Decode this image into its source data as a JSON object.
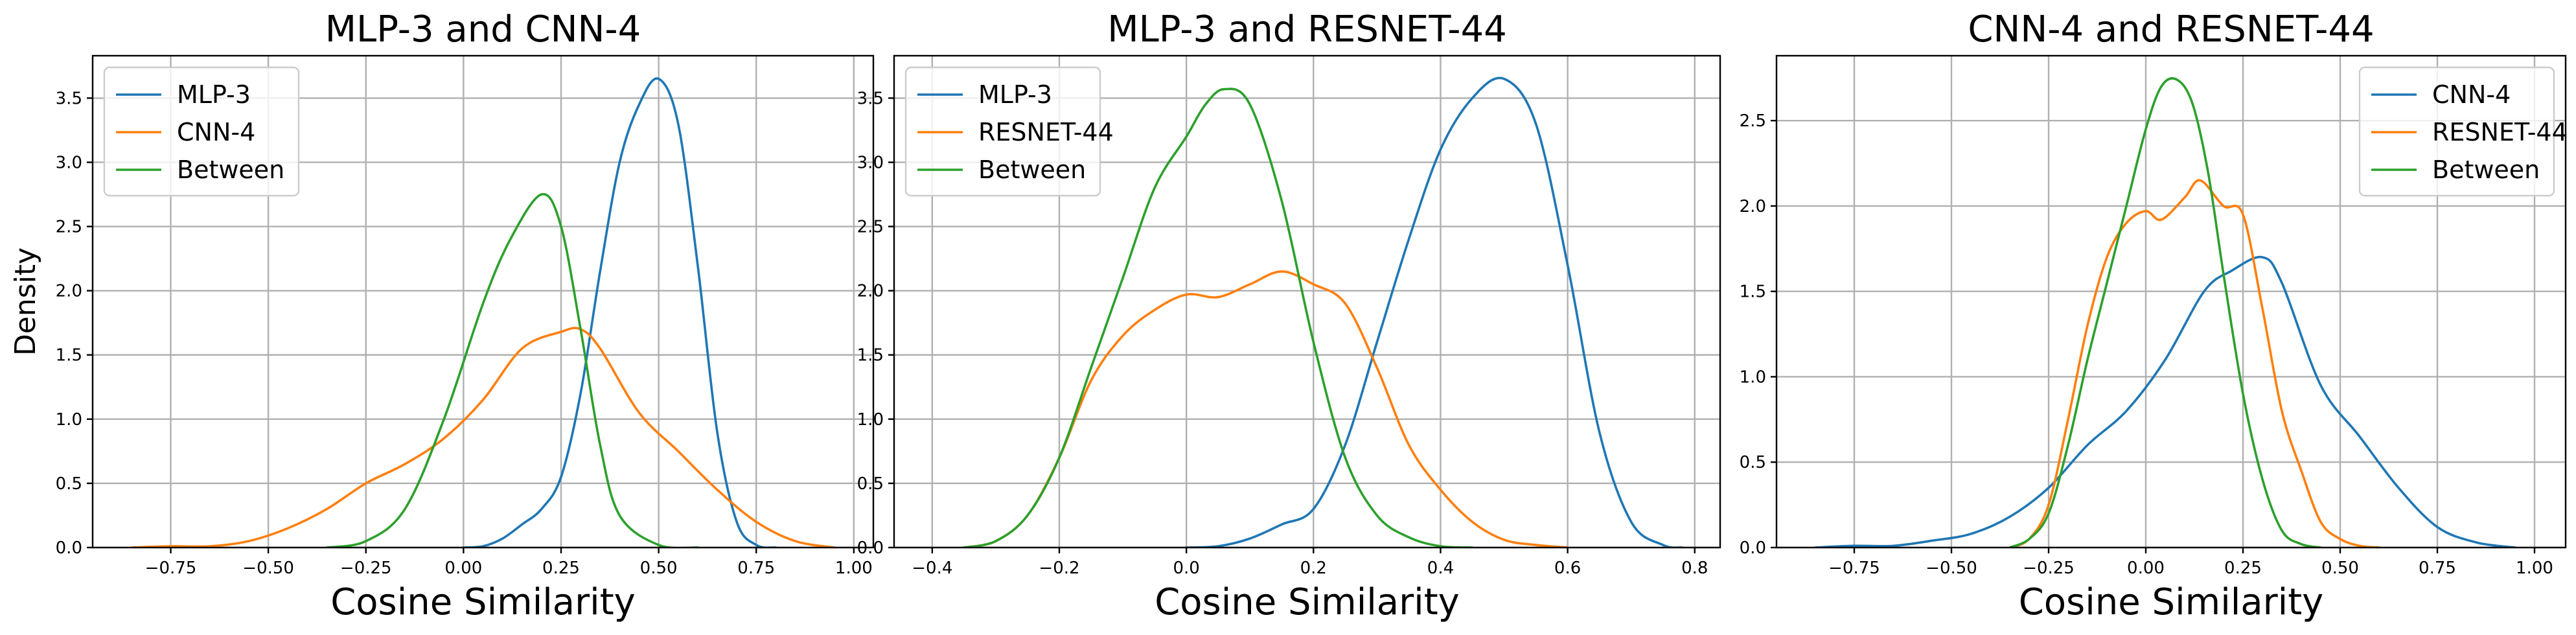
{
  "chart_data": [
    {
      "type": "line",
      "title": "MLP-3 and CNN-4",
      "xlabel": "Cosine Similarity",
      "ylabel": "Density",
      "xlim": [
        -0.95,
        1.05
      ],
      "ylim": [
        0,
        3.83
      ],
      "xticks": [
        -0.75,
        -0.5,
        -0.25,
        0.0,
        0.25,
        0.5,
        0.75,
        1.0
      ],
      "xtick_labels": [
        "−0.75",
        "−0.50",
        "−0.25",
        "0.00",
        "0.25",
        "0.50",
        "0.75",
        "1.00"
      ],
      "yticks": [
        0,
        0.5,
        1.0,
        1.5,
        2.0,
        2.5,
        3.0,
        3.5
      ],
      "ytick_labels": [
        "0.0",
        "0.5",
        "1.0",
        "1.5",
        "2.0",
        "2.5",
        "3.0",
        "3.5"
      ],
      "grid": true,
      "legend_position": "upper-left",
      "series": [
        {
          "name": "MLP-3",
          "color": "#1f77b4",
          "points": [
            [
              0.0,
              0.0
            ],
            [
              0.05,
              0.01
            ],
            [
              0.1,
              0.07
            ],
            [
              0.15,
              0.18
            ],
            [
              0.2,
              0.3
            ],
            [
              0.25,
              0.55
            ],
            [
              0.3,
              1.2
            ],
            [
              0.35,
              2.15
            ],
            [
              0.4,
              3.0
            ],
            [
              0.45,
              3.45
            ],
            [
              0.5,
              3.65
            ],
            [
              0.55,
              3.3
            ],
            [
              0.6,
              2.2
            ],
            [
              0.65,
              0.9
            ],
            [
              0.7,
              0.2
            ],
            [
              0.75,
              0.02
            ],
            [
              0.8,
              0.0
            ]
          ]
        },
        {
          "name": "CNN-4",
          "color": "#ff7f0e",
          "points": [
            [
              -0.85,
              0.0
            ],
            [
              -0.75,
              0.01
            ],
            [
              -0.65,
              0.01
            ],
            [
              -0.55,
              0.05
            ],
            [
              -0.45,
              0.15
            ],
            [
              -0.35,
              0.3
            ],
            [
              -0.25,
              0.5
            ],
            [
              -0.15,
              0.65
            ],
            [
              -0.05,
              0.85
            ],
            [
              0.05,
              1.15
            ],
            [
              0.15,
              1.55
            ],
            [
              0.25,
              1.68
            ],
            [
              0.3,
              1.7
            ],
            [
              0.35,
              1.55
            ],
            [
              0.45,
              1.05
            ],
            [
              0.55,
              0.75
            ],
            [
              0.65,
              0.45
            ],
            [
              0.75,
              0.2
            ],
            [
              0.85,
              0.05
            ],
            [
              0.95,
              0.0
            ]
          ]
        },
        {
          "name": "Between",
          "color": "#2ca02c",
          "points": [
            [
              -0.35,
              0.0
            ],
            [
              -0.25,
              0.05
            ],
            [
              -0.15,
              0.3
            ],
            [
              -0.05,
              1.0
            ],
            [
              0.05,
              1.9
            ],
            [
              0.12,
              2.4
            ],
            [
              0.2,
              2.75
            ],
            [
              0.25,
              2.5
            ],
            [
              0.3,
              1.7
            ],
            [
              0.35,
              0.8
            ],
            [
              0.4,
              0.25
            ],
            [
              0.5,
              0.02
            ],
            [
              0.6,
              0.0
            ]
          ]
        }
      ]
    },
    {
      "type": "line",
      "title": "MLP-3 and RESNET-44",
      "xlabel": "Cosine Similarity",
      "ylabel": "",
      "xlim": [
        -0.46,
        0.84
      ],
      "ylim": [
        0,
        3.83
      ],
      "xticks": [
        -0.4,
        -0.2,
        0.0,
        0.2,
        0.4,
        0.6,
        0.8
      ],
      "xtick_labels": [
        "−0.4",
        "−0.2",
        "0.0",
        "0.2",
        "0.4",
        "0.6",
        "0.8"
      ],
      "yticks": [
        0,
        0.5,
        1.0,
        1.5,
        2.0,
        2.5,
        3.0,
        3.5
      ],
      "ytick_labels": [
        "0.0",
        "0.5",
        "1.0",
        "1.5",
        "2.0",
        "2.5",
        "3.0",
        "3.5"
      ],
      "grid": true,
      "legend_position": "upper-left",
      "series": [
        {
          "name": "MLP-3",
          "color": "#1f77b4",
          "points": [
            [
              0.0,
              0.0
            ],
            [
              0.05,
              0.01
            ],
            [
              0.1,
              0.07
            ],
            [
              0.15,
              0.18
            ],
            [
              0.2,
              0.3
            ],
            [
              0.25,
              0.8
            ],
            [
              0.3,
              1.6
            ],
            [
              0.35,
              2.4
            ],
            [
              0.4,
              3.1
            ],
            [
              0.45,
              3.5
            ],
            [
              0.5,
              3.65
            ],
            [
              0.55,
              3.3
            ],
            [
              0.6,
              2.2
            ],
            [
              0.65,
              0.9
            ],
            [
              0.7,
              0.2
            ],
            [
              0.75,
              0.02
            ],
            [
              0.78,
              0.0
            ]
          ]
        },
        {
          "name": "RESNET-44",
          "color": "#ff7f0e",
          "points": [
            [
              -0.35,
              0.0
            ],
            [
              -0.3,
              0.05
            ],
            [
              -0.25,
              0.25
            ],
            [
              -0.2,
              0.7
            ],
            [
              -0.15,
              1.3
            ],
            [
              -0.1,
              1.65
            ],
            [
              -0.05,
              1.85
            ],
            [
              0.0,
              1.97
            ],
            [
              0.05,
              1.95
            ],
            [
              0.1,
              2.05
            ],
            [
              0.15,
              2.15
            ],
            [
              0.2,
              2.05
            ],
            [
              0.25,
              1.9
            ],
            [
              0.3,
              1.4
            ],
            [
              0.35,
              0.8
            ],
            [
              0.4,
              0.45
            ],
            [
              0.45,
              0.2
            ],
            [
              0.5,
              0.06
            ],
            [
              0.55,
              0.02
            ],
            [
              0.6,
              0.0
            ]
          ]
        },
        {
          "name": "Between",
          "color": "#2ca02c",
          "points": [
            [
              -0.35,
              0.0
            ],
            [
              -0.3,
              0.05
            ],
            [
              -0.25,
              0.25
            ],
            [
              -0.2,
              0.7
            ],
            [
              -0.15,
              1.4
            ],
            [
              -0.1,
              2.1
            ],
            [
              -0.05,
              2.8
            ],
            [
              0.0,
              3.2
            ],
            [
              0.03,
              3.45
            ],
            [
              0.06,
              3.57
            ],
            [
              0.1,
              3.45
            ],
            [
              0.15,
              2.7
            ],
            [
              0.2,
              1.6
            ],
            [
              0.25,
              0.7
            ],
            [
              0.3,
              0.25
            ],
            [
              0.35,
              0.08
            ],
            [
              0.4,
              0.01
            ],
            [
              0.45,
              0.0
            ]
          ]
        }
      ]
    },
    {
      "type": "line",
      "title": "CNN-4 and RESNET-44",
      "xlabel": "Cosine Similarity",
      "ylabel": "",
      "xlim": [
        -0.95,
        1.08
      ],
      "ylim": [
        0,
        2.88
      ],
      "xticks": [
        -0.75,
        -0.5,
        -0.25,
        0.0,
        0.25,
        0.5,
        0.75,
        1.0
      ],
      "xtick_labels": [
        "−0.75",
        "−0.50",
        "−0.25",
        "0.00",
        "0.25",
        "0.50",
        "0.75",
        "1.00"
      ],
      "yticks": [
        0,
        0.5,
        1.0,
        1.5,
        2.0,
        2.5
      ],
      "ytick_labels": [
        "0.0",
        "0.5",
        "1.0",
        "1.5",
        "2.0",
        "2.5"
      ],
      "grid": true,
      "legend_position": "upper-right",
      "series": [
        {
          "name": "CNN-4",
          "color": "#1f77b4",
          "points": [
            [
              -0.85,
              0.0
            ],
            [
              -0.75,
              0.01
            ],
            [
              -0.65,
              0.01
            ],
            [
              -0.55,
              0.04
            ],
            [
              -0.45,
              0.08
            ],
            [
              -0.35,
              0.18
            ],
            [
              -0.25,
              0.35
            ],
            [
              -0.15,
              0.6
            ],
            [
              -0.05,
              0.8
            ],
            [
              0.05,
              1.1
            ],
            [
              0.15,
              1.5
            ],
            [
              0.22,
              1.62
            ],
            [
              0.3,
              1.7
            ],
            [
              0.35,
              1.55
            ],
            [
              0.45,
              0.95
            ],
            [
              0.55,
              0.65
            ],
            [
              0.65,
              0.35
            ],
            [
              0.75,
              0.12
            ],
            [
              0.85,
              0.03
            ],
            [
              0.95,
              0.0
            ]
          ]
        },
        {
          "name": "RESNET-44",
          "color": "#ff7f0e",
          "points": [
            [
              -0.35,
              0.0
            ],
            [
              -0.3,
              0.05
            ],
            [
              -0.25,
              0.25
            ],
            [
              -0.2,
              0.75
            ],
            [
              -0.15,
              1.3
            ],
            [
              -0.1,
              1.7
            ],
            [
              -0.05,
              1.9
            ],
            [
              0.0,
              1.97
            ],
            [
              0.04,
              1.92
            ],
            [
              0.1,
              2.05
            ],
            [
              0.14,
              2.15
            ],
            [
              0.2,
              2.0
            ],
            [
              0.25,
              1.95
            ],
            [
              0.3,
              1.4
            ],
            [
              0.35,
              0.8
            ],
            [
              0.4,
              0.45
            ],
            [
              0.45,
              0.15
            ],
            [
              0.5,
              0.05
            ],
            [
              0.55,
              0.01
            ],
            [
              0.6,
              0.0
            ]
          ]
        },
        {
          "name": "Between",
          "color": "#2ca02c",
          "points": [
            [
              -0.35,
              0.0
            ],
            [
              -0.3,
              0.05
            ],
            [
              -0.25,
              0.2
            ],
            [
              -0.2,
              0.6
            ],
            [
              -0.15,
              1.1
            ],
            [
              -0.1,
              1.55
            ],
            [
              -0.05,
              2.0
            ],
            [
              0.0,
              2.45
            ],
            [
              0.04,
              2.7
            ],
            [
              0.08,
              2.74
            ],
            [
              0.12,
              2.6
            ],
            [
              0.16,
              2.2
            ],
            [
              0.2,
              1.6
            ],
            [
              0.25,
              0.9
            ],
            [
              0.3,
              0.4
            ],
            [
              0.35,
              0.1
            ],
            [
              0.4,
              0.02
            ],
            [
              0.45,
              0.0
            ]
          ]
        }
      ]
    }
  ]
}
